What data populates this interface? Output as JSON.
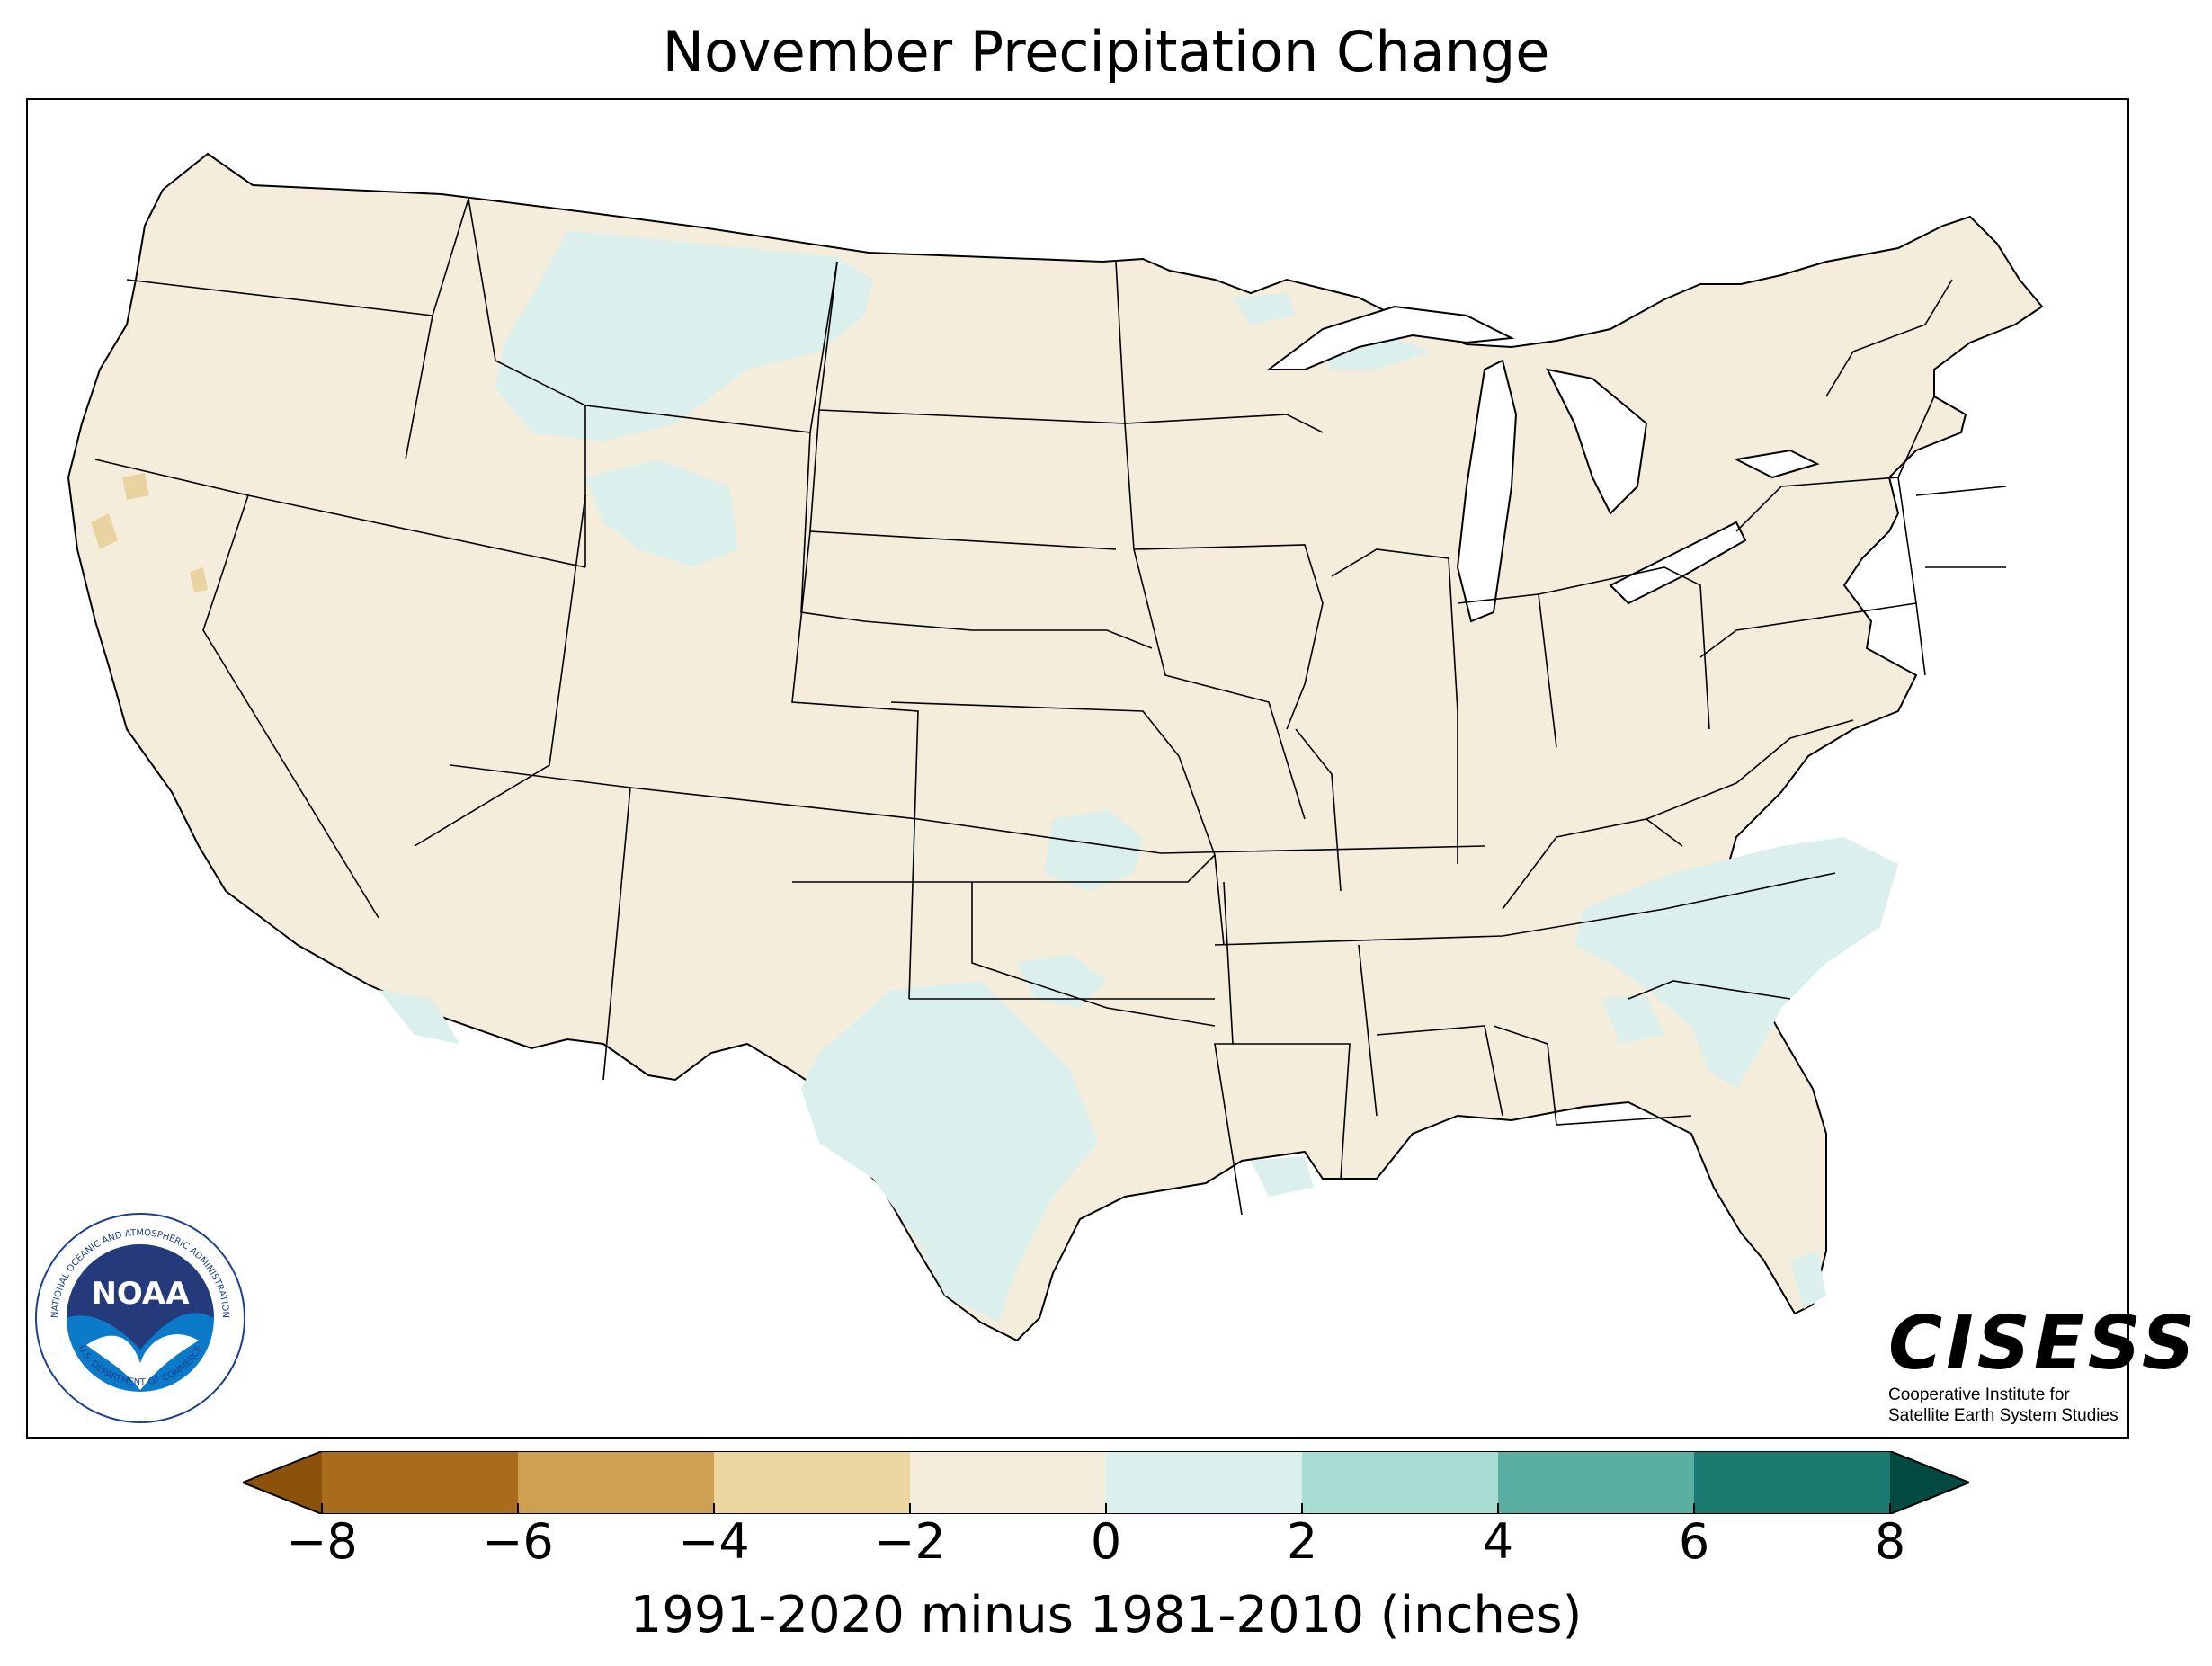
{
  "title": "November Precipitation Change",
  "map": {
    "region": "Contiguous United States",
    "colors": {
      "change_minus2_to_0": "#f5eddc",
      "change_0_to_2": "#dbefec",
      "change_minus4_to_minus2": "#e9d3a0",
      "land_outside": "#ffffff"
    }
  },
  "colorbar": {
    "ticks": [
      "−8",
      "−6",
      "−4",
      "−2",
      "0",
      "2",
      "4",
      "6",
      "8"
    ],
    "colors": [
      "#8c510a",
      "#a86c1c",
      "#cf9f52",
      "#ebd6a0",
      "#f5eddc",
      "#dbefec",
      "#a7ddd3",
      "#5aafa3",
      "#1b7b70",
      "#024a3f"
    ],
    "label": "1991-2020 minus 1981-2010 (inches)"
  },
  "logos": {
    "noaa": {
      "acronym": "NOAA",
      "ring_text": "NATIONAL OCEANIC AND ATMOSPHERIC ADMINISTRATION",
      "bottom_text": "U.S. DEPARTMENT OF COMMERCE"
    },
    "cisess": {
      "name": "CISESS",
      "subtitle_line1": "Cooperative Institute for",
      "subtitle_line2": "Satellite Earth System Studies"
    }
  }
}
